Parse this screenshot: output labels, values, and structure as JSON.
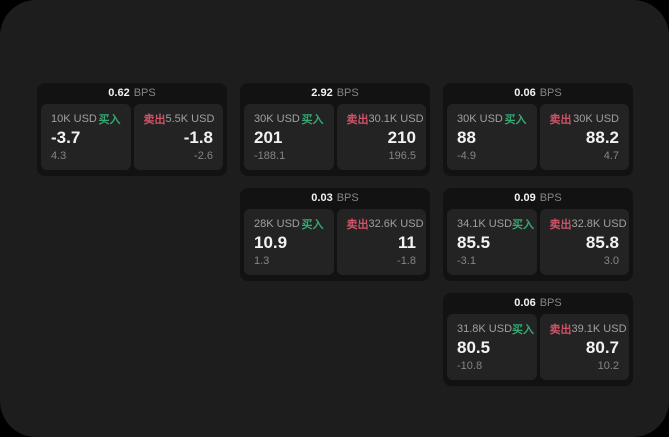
{
  "colors": {
    "outer_bg": "#000000",
    "window_bg": "#1d1d1d",
    "card_bg": "#121212",
    "panel_bg": "#232323",
    "text_primary": "#f2f2f2",
    "text_secondary": "#a0a0a0",
    "text_muted": "#858585",
    "buy_green": "#35a873",
    "sell_red": "#cf5268"
  },
  "labels": {
    "bps_unit": "BPS",
    "buy": "买入",
    "sell": "卖出"
  },
  "cards": [
    {
      "bps": "0.62",
      "buy": {
        "notional": "10K USD",
        "price": "-3.7",
        "change": "4.3"
      },
      "sell": {
        "notional": "5.5K USD",
        "price": "-1.8",
        "change": "-2.6"
      }
    },
    {
      "bps": "2.92",
      "buy": {
        "notional": "30K USD",
        "price": "201",
        "change": "-188.1"
      },
      "sell": {
        "notional": "30.1K USD",
        "price": "210",
        "change": "196.5"
      }
    },
    {
      "bps": "0.06",
      "buy": {
        "notional": "30K USD",
        "price": "88",
        "change": "-4.9"
      },
      "sell": {
        "notional": "30K USD",
        "price": "88.2",
        "change": "4.7"
      }
    },
    {
      "bps": "0.03",
      "buy": {
        "notional": "28K USD",
        "price": "10.9",
        "change": "1.3"
      },
      "sell": {
        "notional": "32.6K USD",
        "price": "11",
        "change": "-1.8"
      }
    },
    {
      "bps": "0.09",
      "buy": {
        "notional": "34.1K USD",
        "price": "85.5",
        "change": "-3.1"
      },
      "sell": {
        "notional": "32.8K USD",
        "price": "85.8",
        "change": "3.0"
      }
    },
    {
      "bps": "0.06",
      "buy": {
        "notional": "31.8K USD",
        "price": "80.5",
        "change": "-10.8"
      },
      "sell": {
        "notional": "39.1K USD",
        "price": "80.7",
        "change": "10.2"
      }
    }
  ]
}
